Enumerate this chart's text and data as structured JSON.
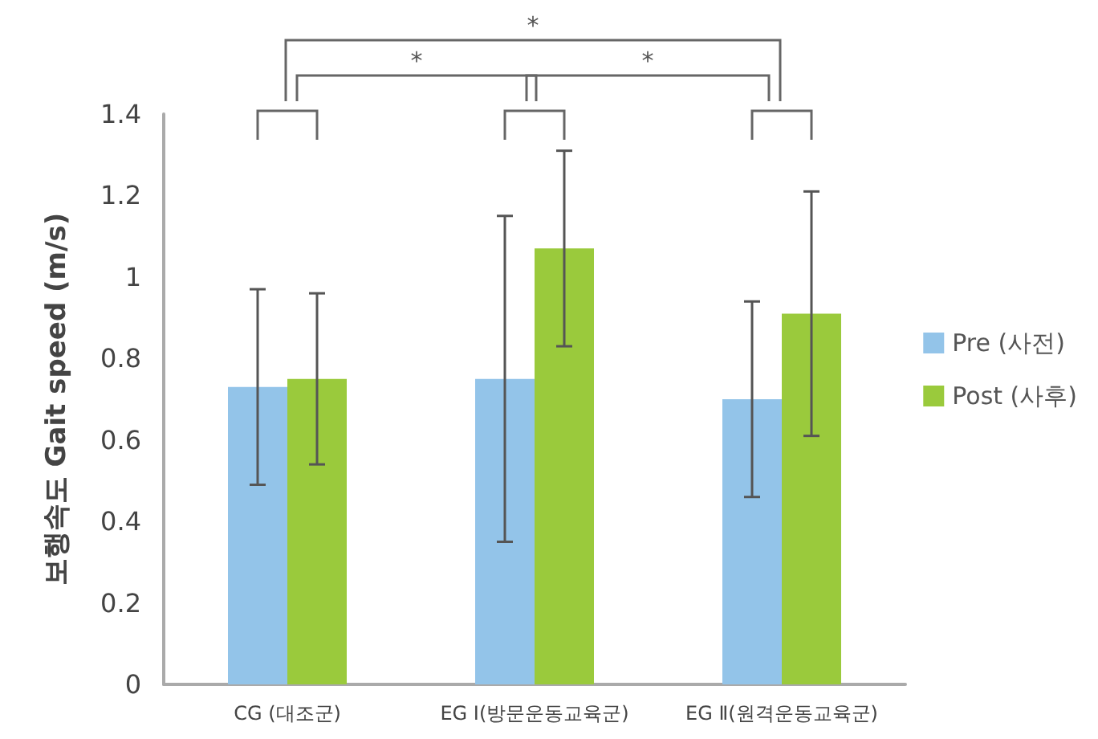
{
  "chart_data": {
    "type": "bar",
    "ylabel": "보행속도 Gait speed (m/s)",
    "categories": [
      "CG (대조군)",
      "EG Ⅰ(방문운동교육군)",
      "EG Ⅱ(원격운동교육군)"
    ],
    "series": [
      {
        "name": "Pre (사전)",
        "color": "#93c4e9",
        "values": [
          0.73,
          0.75,
          0.7
        ],
        "errors": [
          [
            0.49,
            0.97
          ],
          [
            0.35,
            1.15
          ],
          [
            0.46,
            0.94
          ]
        ]
      },
      {
        "name": "Post (사후)",
        "color": "#9aca3c",
        "values": [
          0.75,
          1.07,
          0.91
        ],
        "errors": [
          [
            0.54,
            0.96
          ],
          [
            0.83,
            1.31
          ],
          [
            0.61,
            1.21
          ]
        ]
      }
    ],
    "ylim": [
      0,
      1.4
    ],
    "yticks": [
      0,
      0.2,
      0.4,
      0.6,
      0.8,
      1,
      1.2,
      1.4
    ],
    "grid": false,
    "legend": "right",
    "annotations": [
      "*",
      "*",
      "*"
    ]
  }
}
